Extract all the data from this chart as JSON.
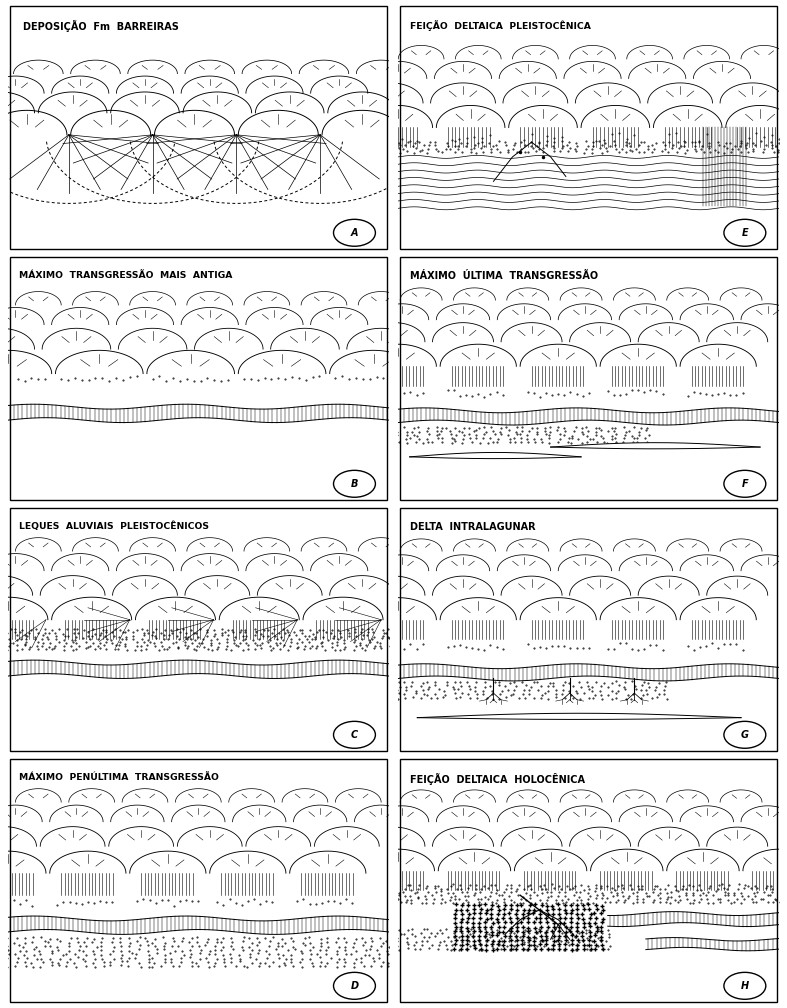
{
  "panels": [
    {
      "label": "A",
      "title": "DEPOSIÇÃO  Fm  BARREIRAS",
      "row": 0,
      "col": 0
    },
    {
      "label": "E",
      "title": "FEIÇÃO  DELTAICA  PLEISTOCÊNICA",
      "row": 0,
      "col": 1
    },
    {
      "label": "B",
      "title": "MÁXIMO  TRANSGRESSÃO  MAIS  ANTIGA",
      "row": 1,
      "col": 0
    },
    {
      "label": "F",
      "title": "MÁXIMO  ÚLTIMA  TRANSGRESSÃO",
      "row": 1,
      "col": 1
    },
    {
      "label": "C",
      "title": "LEQUES  ALUVIAIS  PLEISTOCÊNICOS",
      "row": 2,
      "col": 0
    },
    {
      "label": "G",
      "title": "DELTA  INTRALAGUNAR",
      "row": 2,
      "col": 1
    },
    {
      "label": "D",
      "title": "MÁXIMO  PENÚLTIMA  TRANSGRESSÃO",
      "row": 3,
      "col": 0
    },
    {
      "label": "H",
      "title": "FEIÇÃO  DELTAICA  HOLOCÊNICA",
      "row": 3,
      "col": 1
    }
  ],
  "bg_color": "#ffffff",
  "fig_width": 7.87,
  "fig_height": 10.08,
  "title_fontsize": 7.0
}
